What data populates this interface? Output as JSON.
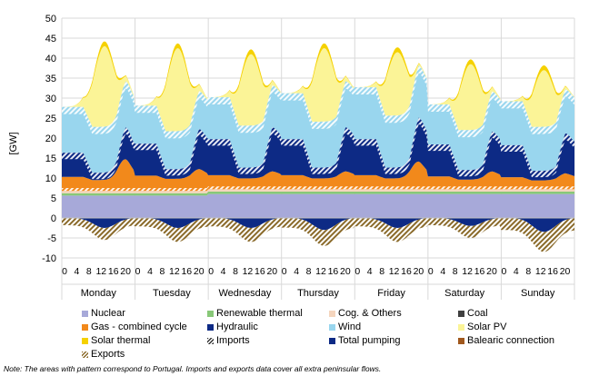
{
  "chart_data": {
    "type": "area",
    "ylabel": "[GW]",
    "ylim": [
      -10,
      50
    ],
    "yticks": [
      -10,
      -5,
      0,
      5,
      10,
      15,
      20,
      25,
      30,
      35,
      40,
      45,
      50
    ],
    "days": [
      "Monday",
      "Tuesday",
      "Wednesday",
      "Thursday",
      "Friday",
      "Saturday",
      "Sunday"
    ],
    "hour_ticks": [
      "0",
      "4",
      "8",
      "12",
      "16",
      "20"
    ],
    "x_unit": "hour of week",
    "series": [
      {
        "name": "Nuclear",
        "color": "#a7a9d9",
        "pattern": false
      },
      {
        "name": "Renewable thermal",
        "color": "#88c878",
        "pattern": false
      },
      {
        "name": "Cog. & Others",
        "color": "#f5d5bd",
        "pattern": false
      },
      {
        "name": "Coal",
        "color": "#404040",
        "pattern": false
      },
      {
        "name": "Gas - combined cycle",
        "color": "#f2891b",
        "pattern": false
      },
      {
        "name": "Hydraulic",
        "color": "#0d2a85",
        "pattern": false
      },
      {
        "name": "Wind",
        "color": "#99d6ee",
        "pattern": false
      },
      {
        "name": "Solar PV",
        "color": "#fbf497",
        "pattern": false
      },
      {
        "name": "Solar thermal",
        "color": "#f5d100",
        "pattern": false
      },
      {
        "name": "Imports",
        "color": "#a2a6cf",
        "pattern": true
      },
      {
        "name": "Total pumping",
        "color": "#0d2a85",
        "pattern": false
      },
      {
        "name": "Balearic connection",
        "color": "#a0581d",
        "pattern": false
      },
      {
        "name": "Exports",
        "color": "#b2842a",
        "pattern": true
      }
    ],
    "hourly_profile_by_day": [
      {
        "day": "Monday",
        "nuclear": 5.6,
        "renewable_thermal": 0.6,
        "cog_others": 0.6,
        "gas_night": 3.5,
        "gas_evening_peak": 8.0,
        "hydraulic_night": 6.0,
        "wind_night": 11.5,
        "solar_peak_total": 43.0,
        "pumping_min": -2.5,
        "exports_min": -3.0
      },
      {
        "day": "Tuesday",
        "nuclear": 5.6,
        "renewable_thermal": 0.6,
        "cog_others": 0.6,
        "gas_night": 3.8,
        "gas_evening_peak": 5.5,
        "hydraulic_night": 8.0,
        "wind_night": 9.5,
        "solar_peak_total": 42.5,
        "pumping_min": -2.5,
        "exports_min": -3.5
      },
      {
        "day": "Wednesday",
        "nuclear": 6.0,
        "renewable_thermal": 0.6,
        "cog_others": 0.6,
        "gas_night": 3.5,
        "gas_evening_peak": 4.5,
        "hydraulic_night": 9.0,
        "wind_night": 10.5,
        "solar_peak_total": 41.0,
        "pumping_min": -2.5,
        "exports_min": -3.5
      },
      {
        "day": "Thursday",
        "nuclear": 6.0,
        "renewable_thermal": 0.6,
        "cog_others": 0.6,
        "gas_night": 3.5,
        "gas_evening_peak": 4.5,
        "hydraulic_night": 9.0,
        "wind_night": 11.5,
        "solar_peak_total": 42.5,
        "pumping_min": -3.0,
        "exports_min": -4.0
      },
      {
        "day": "Friday",
        "nuclear": 6.0,
        "renewable_thermal": 0.6,
        "cog_others": 0.6,
        "gas_night": 3.5,
        "gas_evening_peak": 7.0,
        "hydraulic_night": 9.0,
        "wind_night": 13.0,
        "solar_peak_total": 41.5,
        "pumping_min": -2.5,
        "exports_min": -3.5
      },
      {
        "day": "Saturday",
        "nuclear": 6.0,
        "renewable_thermal": 0.6,
        "cog_others": 0.6,
        "gas_night": 3.2,
        "gas_evening_peak": 4.5,
        "hydraulic_night": 8.0,
        "wind_night": 10.0,
        "solar_peak_total": 38.5,
        "pumping_min": -2.0,
        "exports_min": -3.0
      },
      {
        "day": "Sunday",
        "nuclear": 6.0,
        "renewable_thermal": 0.6,
        "cog_others": 0.6,
        "gas_night": 3.0,
        "gas_evening_peak": 4.0,
        "hydraulic_night": 8.0,
        "wind_night": 11.0,
        "solar_peak_total": 37.0,
        "pumping_min": -3.5,
        "exports_min": -5.0
      }
    ]
  },
  "legend": [
    {
      "label": "Nuclear",
      "color": "#a7a9d9",
      "pattern": false
    },
    {
      "label": "Renewable thermal",
      "color": "#88c878",
      "pattern": false
    },
    {
      "label": "Cog. & Others",
      "color": "#f5d5bd",
      "pattern": false
    },
    {
      "label": "Coal",
      "color": "#404040",
      "pattern": false
    },
    {
      "label": "Gas - combined cycle",
      "color": "#f2891b",
      "pattern": false
    },
    {
      "label": "Hydraulic",
      "color": "#0d2a85",
      "pattern": false
    },
    {
      "label": "Wind",
      "color": "#99d6ee",
      "pattern": false
    },
    {
      "label": "Solar PV",
      "color": "#fbf497",
      "pattern": false
    },
    {
      "label": "Solar thermal",
      "color": "#f5d100",
      "pattern": false
    },
    {
      "label": "Imports",
      "color": "#a2a6cf",
      "pattern": true
    },
    {
      "label": "Total pumping",
      "color": "#0d2a85",
      "pattern": false
    },
    {
      "label": "Balearic connection",
      "color": "#a0581d",
      "pattern": false
    },
    {
      "label": "Exports",
      "color": "#b2842a",
      "pattern": true
    }
  ],
  "note": "Note: The areas with pattern correspond to Portugal. Imports and exports data cover all extra peninsular flows."
}
